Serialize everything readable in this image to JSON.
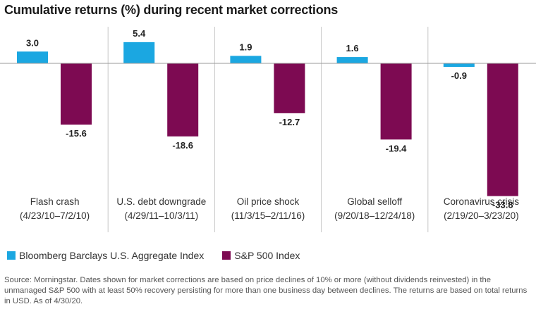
{
  "chart_data": {
    "type": "bar",
    "title": "Cumulative returns (%) during recent market corrections",
    "categories": [
      {
        "name": "Flash crash",
        "dates": "(4/23/10–7/2/10)"
      },
      {
        "name": "U.S. debt downgrade",
        "dates": "(4/29/11–10/3/11)"
      },
      {
        "name": "Oil price shock",
        "dates": "(11/3/15–2/11/16)"
      },
      {
        "name": "Global selloff",
        "dates": "(9/20/18–12/24/18)"
      },
      {
        "name": "Coronavirus crisis",
        "dates": "(2/19/20–3/23/20)"
      }
    ],
    "series": [
      {
        "name": "Bloomberg Barclays U.S. Aggregate Index",
        "color": "#1ba7e1",
        "values": [
          3.0,
          5.4,
          1.9,
          1.6,
          -0.9
        ],
        "labels": [
          "3.0",
          "5.4",
          "1.9",
          "1.6",
          "-0.9"
        ]
      },
      {
        "name": "S&P 500 Index",
        "color": "#7d0a52",
        "values": [
          -15.6,
          -18.6,
          -12.7,
          -19.4,
          -33.8
        ],
        "labels": [
          "-15.6",
          "-18.6",
          "-12.7",
          "-19.4",
          "-33.8"
        ]
      }
    ],
    "ylim": [
      -36,
      10
    ],
    "grid": false,
    "legend_position": "bottom-left"
  },
  "footnote": "Source: Morningstar. Dates shown for market corrections are based on price declines of 10% or more (without dividends reinvested) in the unmanaged S&P 500 with at least 50% recovery persisting for more than one business day between declines. The returns are based on total returns in USD. As of 4/30/20."
}
